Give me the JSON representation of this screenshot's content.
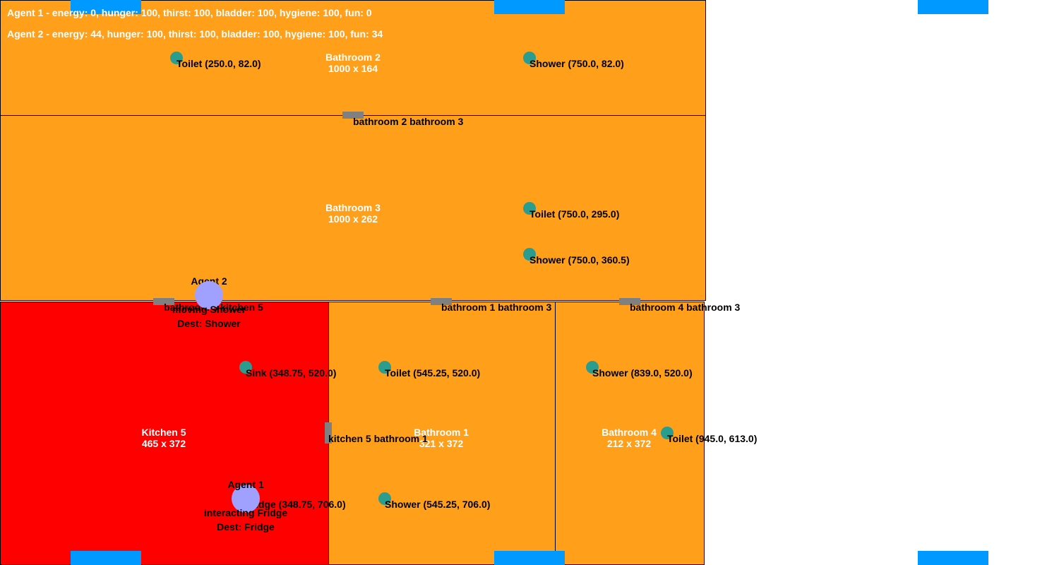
{
  "hud": {
    "agent1_status": "Agent 1 - energy: 0, hunger: 100, thirst: 100, bladder: 100, hygiene: 100, fun: 0",
    "agent2_status": "Agent 2 - energy: 44, hunger: 100, thirst: 100, bladder: 100, hygiene: 100, fun: 34"
  },
  "colors": {
    "bathroom": "#ff9f1a",
    "kitchen": "#ff0000",
    "window": "#0099ff",
    "door": "#808080",
    "object": "#2a9d8f",
    "agent": "#a0a0ff"
  },
  "rooms": {
    "bathroom2": {
      "name": "Bathroom 2",
      "size": "1000 x 164"
    },
    "bathroom3": {
      "name": "Bathroom 3",
      "size": "1000 x 262"
    },
    "kitchen5": {
      "name": "Kitchen 5",
      "size": "465 x 372"
    },
    "bathroom1": {
      "name": "Bathroom 1",
      "size": "321 x 372"
    },
    "bathroom4": {
      "name": "Bathroom 4",
      "size": "212 x 372"
    }
  },
  "doors": {
    "b2_b3": "bathroom 2 bathroom 3",
    "b3_k5": "bathroom 3 kitchen 5",
    "b1_b3": "bathroom 1 bathroom 3",
    "b4_b3": "bathroom 4 bathroom 3",
    "k5_b1": "kitchen 5 bathroom 1"
  },
  "objects": {
    "b2_toilet": "Toilet (250.0, 82.0)",
    "b2_shower": "Shower (750.0, 82.0)",
    "b3_toilet": "Toilet (750.0, 295.0)",
    "b3_shower": "Shower (750.0, 360.5)",
    "k5_sink": "Sink (348.75, 520.0)",
    "k5_fridge": "Fridge (348.75, 706.0)",
    "b1_toilet": "Toilet (545.25, 520.0)",
    "b1_shower": "Shower (545.25, 706.0)",
    "b4_shower": "Shower (839.0, 520.0)",
    "b4_toilet": "Toilet (945.0, 613.0)"
  },
  "agents": {
    "agent2": {
      "name": "Agent 2",
      "state": "moving Shower",
      "dest": "Dest: Shower"
    },
    "agent1": {
      "name": "Agent 1",
      "state": "interacting Fridge",
      "dest": "Dest: Fridge"
    }
  }
}
